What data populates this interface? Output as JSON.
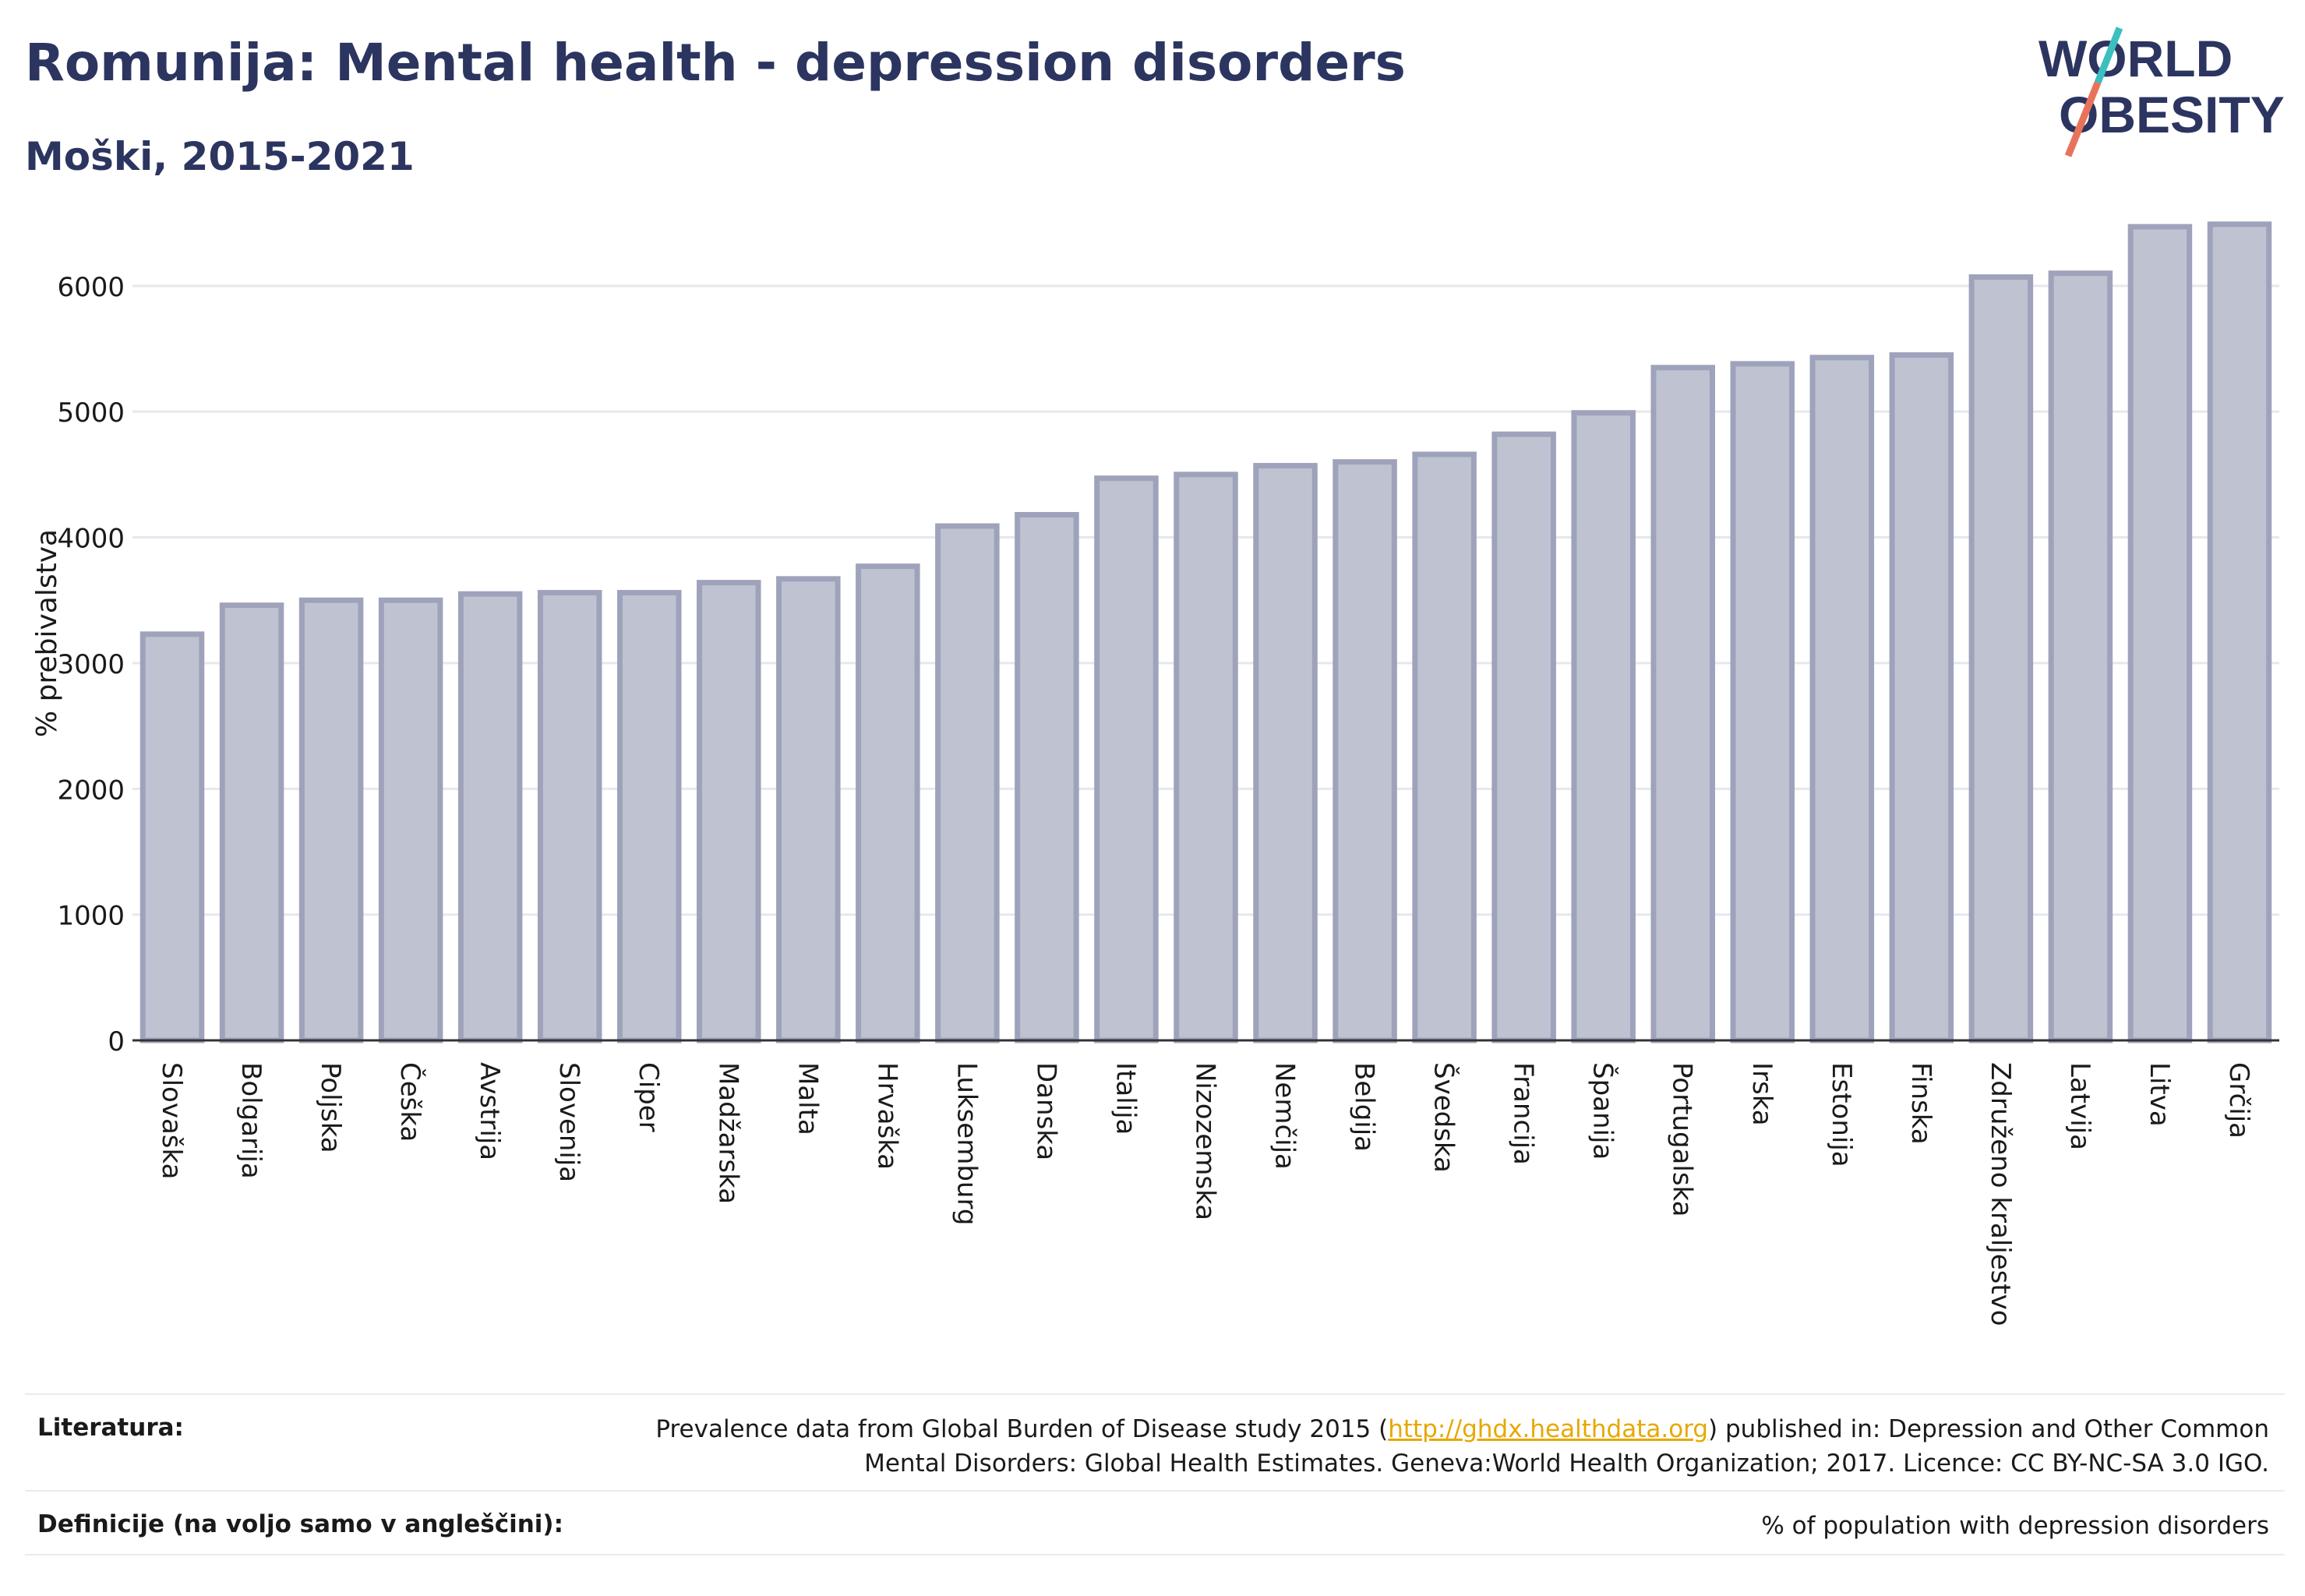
{
  "header": {
    "title": "Romunija: Mental health - depression disorders",
    "subtitle": "Moški, 2015-2021"
  },
  "logo": {
    "line1": "WORLD",
    "line2": "OBESITY",
    "color": "#2c3560",
    "accent_teal": "#3bbfbf",
    "accent_coral": "#e8735a"
  },
  "chart_data": {
    "type": "bar",
    "ylabel": "% prebivalstva",
    "ylim": [
      0,
      6600
    ],
    "yticks": [
      0,
      1000,
      2000,
      3000,
      4000,
      5000,
      6000
    ],
    "grid": true,
    "bar_color": "#bfc3d1",
    "bar_edge_color": "#9ea3bb",
    "categories": [
      "Slovaška",
      "Bolgarija",
      "Poljska",
      "Češka",
      "Avstrija",
      "Slovenija",
      "Ciper",
      "Madžarska",
      "Malta",
      "Hrvaška",
      "Luksemburg",
      "Danska",
      "Italija",
      "Nizozemska",
      "Nemčija",
      "Belgija",
      "Švedska",
      "Francija",
      "Španija",
      "Portugalska",
      "Irska",
      "Estonija",
      "Finska",
      "Združeno kraljestvo",
      "Latvija",
      "Litva",
      "Grčija"
    ],
    "values": [
      3230,
      3460,
      3500,
      3500,
      3550,
      3560,
      3560,
      3640,
      3670,
      3770,
      4090,
      4180,
      4470,
      4500,
      4570,
      4600,
      4660,
      4820,
      4990,
      5350,
      5380,
      5430,
      5450,
      6070,
      6100,
      6470,
      6490
    ]
  },
  "footer": {
    "literature_label": "Literatura:",
    "literature_pre": "Prevalence data from Global Burden of Disease study 2015 (",
    "literature_link": "http://ghdx.healthdata.org",
    "literature_post": ") published in: Depression and Other Common",
    "literature_line2": "Mental Disorders: Global Health Estimates. Geneva:World Health Organization; 2017. Licence: CC BY-NC-SA 3.0 IGO.",
    "definitions_label": "Definicije (na voljo samo v angleščini):",
    "definitions_text": "% of population with depression disorders"
  }
}
